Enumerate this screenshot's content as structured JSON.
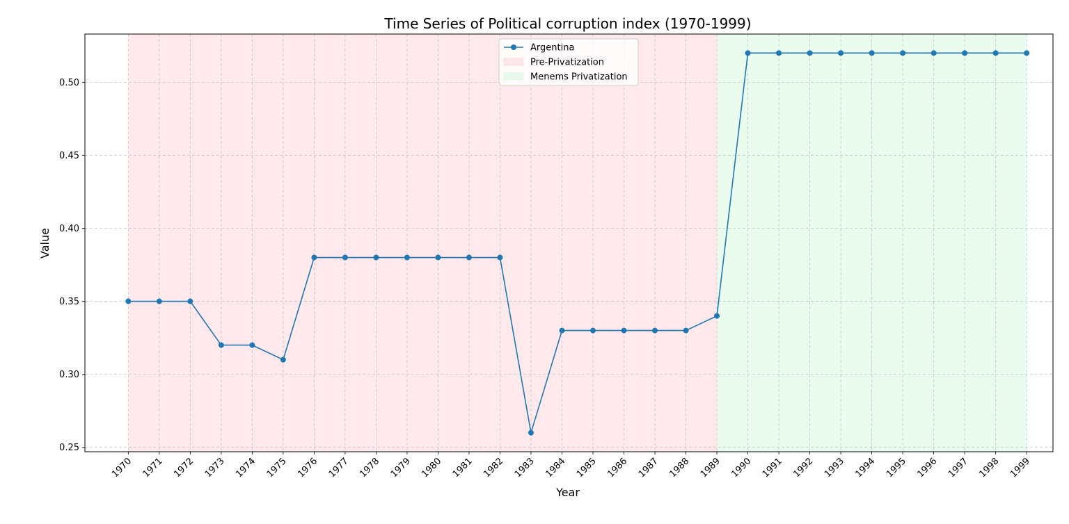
{
  "chart_data": {
    "type": "line",
    "title": "Time Series of Political corruption index (1970-1999)",
    "xlabel": "Year",
    "ylabel": "Value",
    "x": [
      1970,
      1971,
      1972,
      1973,
      1974,
      1975,
      1976,
      1977,
      1978,
      1979,
      1980,
      1981,
      1982,
      1983,
      1984,
      1985,
      1986,
      1987,
      1988,
      1989,
      1990,
      1991,
      1992,
      1993,
      1994,
      1995,
      1996,
      1997,
      1998,
      1999
    ],
    "ylim": [
      0.247,
      0.533
    ],
    "xlim": [
      1968.6,
      1999.85
    ],
    "yticks": [
      0.25,
      0.3,
      0.35,
      0.4,
      0.45,
      0.5
    ],
    "ytick_labels": [
      "0.25",
      "0.30",
      "0.35",
      "0.40",
      "0.45",
      "0.50"
    ],
    "grid": true,
    "legend_position": "top-center",
    "series": [
      {
        "name": "Argentina",
        "color": "#1f77b4",
        "marker": "circle",
        "values": [
          0.35,
          0.35,
          0.35,
          0.32,
          0.32,
          0.31,
          0.38,
          0.38,
          0.38,
          0.38,
          0.38,
          0.38,
          0.38,
          0.26,
          0.33,
          0.33,
          0.33,
          0.33,
          0.33,
          0.34,
          0.52,
          0.52,
          0.52,
          0.52,
          0.52,
          0.52,
          0.52,
          0.52,
          0.52,
          0.52
        ]
      }
    ],
    "shaded_regions": [
      {
        "name": "Pre-Privatization",
        "x_start": 1970,
        "x_end": 1989,
        "color": "#ffb6c1",
        "opacity": 0.3
      },
      {
        "name": "Menems Privatization",
        "x_start": 1989,
        "x_end": 1999,
        "color": "#b6f5c8",
        "opacity": 0.3
      }
    ]
  }
}
